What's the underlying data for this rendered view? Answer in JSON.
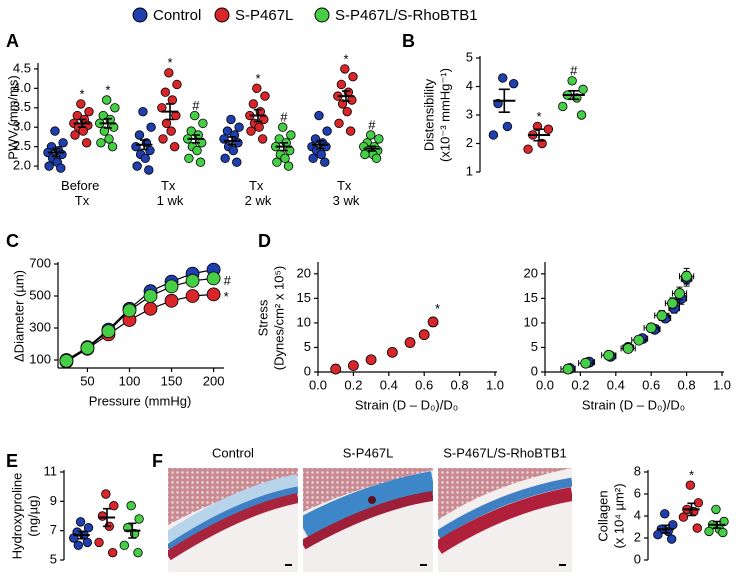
{
  "chart_data": [
    {
      "type": "dot",
      "panel": "A",
      "ylabel": [
        "PWV (mm/ms)"
      ],
      "categories": [
        "Before Tx",
        "Tx 1 wk",
        "Tx 2 wk",
        "Tx 3 wk"
      ],
      "ylim": [
        1.9,
        4.6
      ],
      "yticks": [
        {
          "value": 2,
          "label": "2.0"
        },
        {
          "value": 2.5,
          "label": "2.5"
        },
        {
          "value": 3,
          "label": "3.0"
        },
        {
          "value": 3.5,
          "label": "3.5"
        },
        {
          "value": 4,
          "label": "4.0"
        },
        {
          "value": 4.5,
          "label": "4.5"
        }
      ],
      "series": [
        {
          "name": "Control",
          "color": "#1f3fae",
          "points": [
            [
              2.9,
              2.6,
              2.5,
              2.4,
              2.35,
              2.3,
              2.2,
              2.1,
              2.0,
              1.95
            ],
            [
              3.4,
              3.0,
              2.8,
              2.6,
              2.5,
              2.4,
              2.3,
              2.2,
              2.0,
              1.9
            ],
            [
              3.2,
              3.0,
              2.9,
              2.8,
              2.7,
              2.6,
              2.5,
              2.4,
              2.2,
              2.1
            ],
            [
              3.3,
              2.9,
              2.7,
              2.6,
              2.5,
              2.5,
              2.4,
              2.3,
              2.2,
              2.1
            ]
          ],
          "values": [
            2.35,
            2.55,
            2.65,
            2.55
          ],
          "errors": [
            0.1,
            0.12,
            0.1,
            0.1
          ]
        },
        {
          "name": "S-P467L",
          "color": "#d8262b",
          "points": [
            [
              3.6,
              3.4,
              3.3,
              3.2,
              3.1,
              3.05,
              3.0,
              2.9,
              2.8,
              2.6
            ],
            [
              4.4,
              4.1,
              3.9,
              3.7,
              3.5,
              3.3,
              3.1,
              2.9,
              2.7,
              2.5
            ],
            [
              4.0,
              3.8,
              3.6,
              3.4,
              3.3,
              3.2,
              3.1,
              3.0,
              2.9,
              2.7
            ],
            [
              4.5,
              4.3,
              4.1,
              3.9,
              3.8,
              3.7,
              3.6,
              3.4,
              3.1,
              2.9
            ]
          ],
          "values": [
            3.1,
            3.4,
            3.3,
            3.8
          ],
          "errors": [
            0.1,
            0.2,
            0.15,
            0.13
          ],
          "annotations": [
            "*",
            "*",
            "*",
            "*"
          ]
        },
        {
          "name": "S-P467L/S-RhoBTB1",
          "color": "#46cf46",
          "points": [
            [
              3.7,
              3.5,
              3.3,
              3.2,
              3.1,
              3.0,
              2.9,
              2.7,
              2.6,
              2.5
            ],
            [
              3.3,
              3.1,
              2.9,
              2.8,
              2.7,
              2.6,
              2.5,
              2.4,
              2.2,
              2.1
            ],
            [
              3.0,
              2.8,
              2.7,
              2.6,
              2.5,
              2.4,
              2.3,
              2.2,
              2.1,
              2.0
            ],
            [
              2.8,
              2.7,
              2.6,
              2.5,
              2.5,
              2.4,
              2.4,
              2.3,
              2.3,
              2.2
            ]
          ],
          "values": [
            3.1,
            2.7,
            2.5,
            2.45
          ],
          "errors": [
            0.12,
            0.1,
            0.1,
            0.06
          ],
          "annotations": [
            "*",
            "#",
            "#",
            "#"
          ]
        }
      ]
    },
    {
      "type": "dot",
      "panel": "B",
      "ylabel": [
        "Distensibility",
        "(x10⁻³ mmHg⁻¹)"
      ],
      "ylim": [
        1,
        5
      ],
      "yticks": [
        1,
        2,
        3,
        4,
        5
      ],
      "series": [
        {
          "color": "#1f3fae",
          "points": [
            [
              4.3,
              4.1,
              3.4,
              2.6,
              2.3
            ]
          ],
          "values": [
            3.5
          ],
          "errors": [
            0.4
          ]
        },
        {
          "color": "#d8262b",
          "points": [
            [
              2.6,
              2.5,
              2.3,
              2.0,
              1.8
            ]
          ],
          "values": [
            2.3
          ],
          "errors": [
            0.2
          ],
          "annotations": [
            "*"
          ]
        },
        {
          "color": "#46cf46",
          "points": [
            [
              4.2,
              3.9,
              3.7,
              3.6,
              3.3,
              3.0
            ]
          ],
          "values": [
            3.7
          ],
          "errors": [
            0.15
          ],
          "annotations": [
            "#"
          ]
        }
      ]
    },
    {
      "type": "line",
      "panel": "C",
      "ylabel": [
        "ΔDiameter (µm)"
      ],
      "xlabel": "Pressure (mmHg)",
      "x": [
        25,
        50,
        75,
        100,
        125,
        150,
        175,
        200
      ],
      "xlim": [
        15,
        210
      ],
      "xticks": [
        50,
        100,
        150,
        200
      ],
      "ylim": [
        50,
        700
      ],
      "yticks": [
        100,
        300,
        500,
        700
      ],
      "series": [
        {
          "color": "#1f3fae",
          "values": [
            100,
            180,
            290,
            420,
            530,
            590,
            640,
            665
          ]
        },
        {
          "color": "#d8262b",
          "values": [
            90,
            170,
            260,
            350,
            420,
            470,
            500,
            510
          ],
          "end_label": "*"
        },
        {
          "color": "#46cf46",
          "values": [
            95,
            175,
            280,
            410,
            500,
            560,
            595,
            610
          ],
          "end_label": "#"
        }
      ]
    },
    {
      "type": "scatter",
      "panel": "D",
      "ylabel": [
        "Stress",
        "(Dynes/cm² x 10⁵)"
      ],
      "xlabel": "Strain (D – D₀)/D₀",
      "xlim": [
        0,
        1
      ],
      "xticks": [
        {
          "value": 0,
          "label": "0.0"
        },
        {
          "value": 0.2,
          "label": "0.2"
        },
        {
          "value": 0.4,
          "label": "0.4"
        },
        {
          "value": 0.6,
          "label": "0.6"
        },
        {
          "value": 0.8,
          "label": "0.8"
        },
        {
          "value": 1,
          "label": "1.0"
        }
      ],
      "ylim": [
        0,
        22
      ],
      "yticks": [
        0,
        5,
        10,
        15,
        20
      ],
      "series": [
        {
          "color": "#d8262b",
          "x": [
            0.1,
            0.2,
            0.3,
            0.42,
            0.52,
            0.6,
            0.65
          ],
          "values": [
            0.6,
            1.3,
            2.5,
            4.0,
            6.0,
            7.6,
            10.2
          ],
          "xerr": [
            0.01,
            0.01,
            0.01,
            0.01,
            0.02,
            0.02,
            0.02
          ],
          "yerr": [
            0.1,
            0.1,
            0.2,
            0.3,
            0.4,
            0.6,
            0.9
          ],
          "end_label": "*"
        }
      ]
    },
    {
      "type": "scatter",
      "xlabel": "Strain (D – D₀)/D₀",
      "xlim": [
        0,
        1
      ],
      "xticks": [
        {
          "value": 0,
          "label": "0.0"
        },
        {
          "value": 0.2,
          "label": "0.2"
        },
        {
          "value": 0.4,
          "label": "0.4"
        },
        {
          "value": 0.6,
          "label": "0.6"
        },
        {
          "value": 0.8,
          "label": "0.8"
        },
        {
          "value": 1,
          "label": "1.0"
        }
      ],
      "ylim": [
        0,
        22
      ],
      "yticks": [
        0,
        5,
        10,
        15,
        20
      ],
      "series": [
        {
          "color": "#1f3fae",
          "x": [
            0.14,
            0.25,
            0.37,
            0.47,
            0.55,
            0.62,
            0.68,
            0.73,
            0.77,
            0.8
          ],
          "values": [
            0.7,
            2.0,
            3.2,
            5.0,
            6.8,
            8.7,
            11.0,
            13.0,
            15.0,
            19.0
          ],
          "xerr": [
            0.03,
            0.03,
            0.03,
            0.03,
            0.03,
            0.03,
            0.03,
            0.03,
            0.03,
            0.03
          ],
          "yerr": [
            0.2,
            0.3,
            0.4,
            0.5,
            0.6,
            0.7,
            0.8,
            1.0,
            1.2,
            1.5
          ]
        },
        {
          "color": "#46cf46",
          "x": [
            0.13,
            0.23,
            0.36,
            0.47,
            0.53,
            0.6,
            0.66,
            0.72,
            0.76,
            0.8
          ],
          "values": [
            0.6,
            1.8,
            3.4,
            4.8,
            6.5,
            9.0,
            11.5,
            14.0,
            16.0,
            19.5
          ],
          "xerr": [
            0.04,
            0.04,
            0.04,
            0.04,
            0.04,
            0.04,
            0.04,
            0.04,
            0.04,
            0.04
          ],
          "yerr": [
            0.2,
            0.3,
            0.4,
            0.5,
            0.6,
            0.8,
            1.0,
            1.1,
            1.3,
            1.6
          ]
        }
      ]
    },
    {
      "type": "dot",
      "panel": "E",
      "ylabel": [
        "Hydroxyproline",
        "(ng/µg)"
      ],
      "ylim": [
        5,
        11
      ],
      "yticks": [
        5,
        7,
        9,
        11
      ],
      "series": [
        {
          "color": "#1f3fae",
          "points": [
            [
              7.6,
              7.2,
              6.9,
              6.7,
              6.5,
              6.2,
              6.0
            ]
          ],
          "values": [
            6.7
          ],
          "errors": [
            0.25
          ]
        },
        {
          "color": "#d8262b",
          "points": [
            [
              9.5,
              8.7,
              8.0,
              7.3,
              6.2,
              5.5
            ]
          ],
          "values": [
            7.9
          ],
          "errors": [
            0.6
          ]
        },
        {
          "color": "#46cf46",
          "points": [
            [
              8.7,
              7.8,
              7.2,
              6.8,
              6.0,
              5.5
            ]
          ],
          "values": [
            7.0
          ],
          "errors": [
            0.5
          ]
        }
      ]
    },
    {
      "type": "dot",
      "panel": "F",
      "ylabel": [
        "Collagen",
        "(x 10⁴ µm²)"
      ],
      "image_titles": [
        "Control",
        "S-P467L",
        "S-P467L/S-RhoBTB1"
      ],
      "ylim": [
        0,
        8
      ],
      "yticks": [
        0,
        2,
        4,
        6,
        8
      ],
      "series": [
        {
          "color": "#1f3fae",
          "points": [
            [
              4.2,
              3.2,
              2.8,
              2.6,
              2.3,
              1.9
            ]
          ],
          "values": [
            2.8
          ],
          "errors": [
            0.35
          ]
        },
        {
          "color": "#d8262b",
          "points": [
            [
              6.8,
              5.2,
              4.6,
              4.4,
              3.9,
              2.9
            ]
          ],
          "values": [
            4.6
          ],
          "errors": [
            0.55
          ],
          "annotations": [
            "*"
          ]
        },
        {
          "color": "#46cf46",
          "points": [
            [
              4.6,
              3.5,
              3.2,
              2.8,
              2.6,
              2.5
            ]
          ],
          "values": [
            3.2
          ],
          "errors": [
            0.3
          ]
        }
      ]
    }
  ]
}
